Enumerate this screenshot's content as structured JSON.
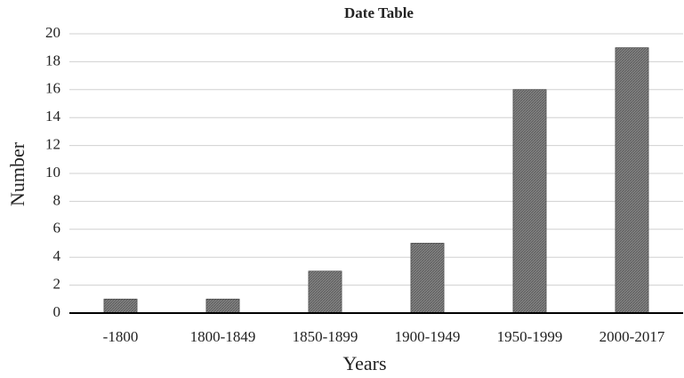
{
  "chart_data": {
    "type": "bar",
    "title": "Date Table",
    "x_label": "Years",
    "y_label": "Number",
    "categories": [
      "-1800",
      "1800-1849",
      "1850-1899",
      "1900-1949",
      "1950-1999",
      "2000-2017"
    ],
    "values": [
      1,
      1,
      3,
      5,
      16,
      19
    ],
    "color": "#5a5a5a",
    "ylim": [
      0,
      20
    ],
    "yticks": [
      0,
      2,
      4,
      6,
      8,
      10,
      12,
      14,
      16,
      18,
      20
    ],
    "grid": true
  }
}
